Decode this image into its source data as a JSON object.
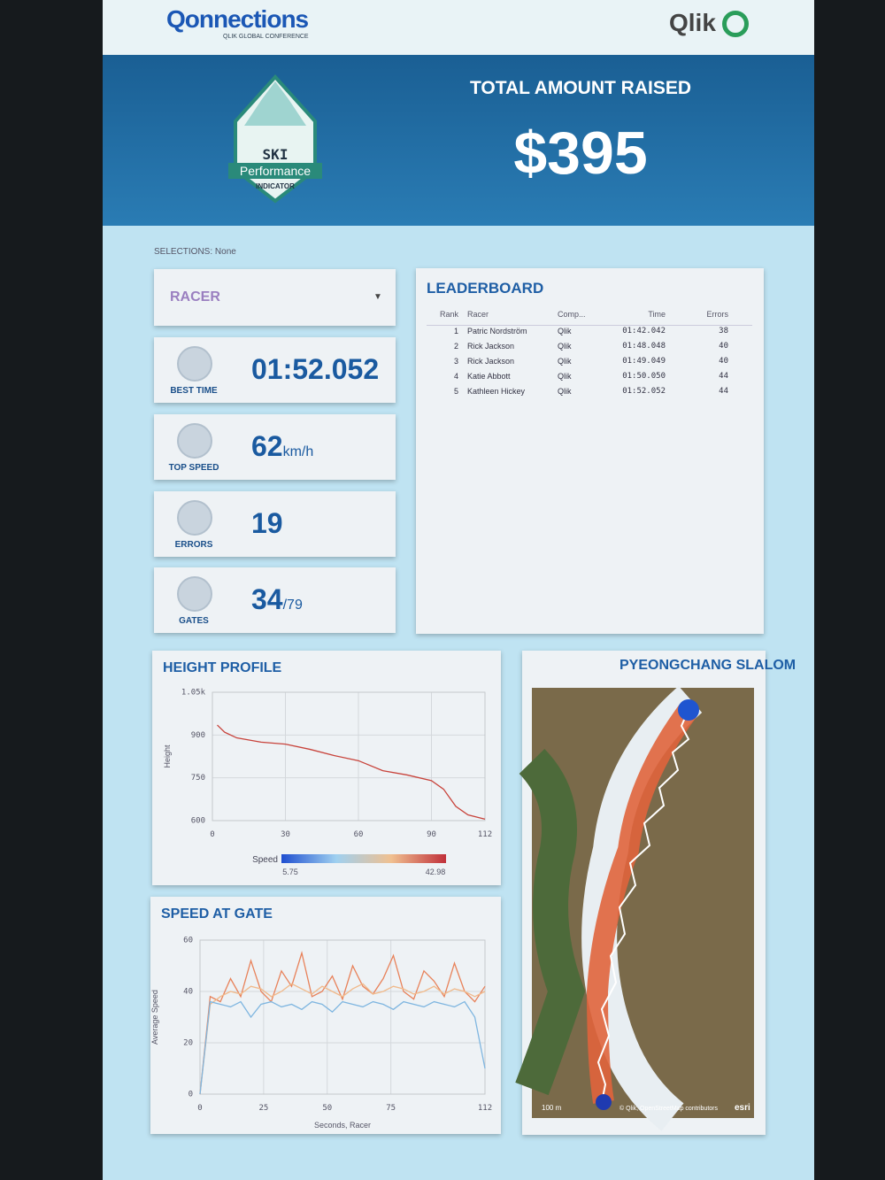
{
  "header": {
    "brand": "Qonnections",
    "brand_sub": "QLIK GLOBAL CONFERENCE",
    "partner": "Qlik"
  },
  "banner": {
    "badge": [
      "SKI",
      "Performance",
      "INDICATOR"
    ],
    "total_label": "TOTAL AMOUNT RAISED",
    "total": "$395"
  },
  "selections": {
    "label": "SELECTIONS:",
    "value": "None"
  },
  "racer_filter": "RACER",
  "kpis": [
    {
      "label": "BEST TIME",
      "value": "01:52.052"
    },
    {
      "label": "TOP SPEED",
      "value": 62,
      "unit": "km/h"
    },
    {
      "label": "ERRORS",
      "value": 19
    },
    {
      "label": "GATES",
      "value": 34,
      "unit": "/79"
    }
  ],
  "leaderboard": {
    "title": "LEADERBOARD",
    "columns": [
      "Rank",
      "Racer",
      "Comp...",
      "Time",
      "Errors"
    ],
    "rows": [
      [
        1,
        "Patric Nordström",
        "Qlik",
        "01:42.042",
        38
      ],
      [
        2,
        "Rick Jackson",
        "Qlik",
        "01:48.048",
        40
      ],
      [
        3,
        "Rick Jackson",
        "Qlik",
        "01:49.049",
        40
      ],
      [
        4,
        "Katie Abbott",
        "Qlik",
        "01:50.050",
        44
      ],
      [
        5,
        "Kathleen Hickey",
        "Qlik",
        "01:52.052",
        44
      ]
    ]
  },
  "chart_data": [
    {
      "type": "line",
      "title": "HEIGHT PROFILE",
      "y_label": "Height",
      "x": [
        2,
        5,
        10,
        20,
        30,
        40,
        50,
        60,
        70,
        80,
        90,
        95,
        100,
        105,
        112
      ],
      "series": [
        {
          "color": "#c8433b",
          "values": [
            935,
            910,
            890,
            875,
            868,
            850,
            828,
            810,
            775,
            760,
            740,
            710,
            650,
            620,
            605
          ]
        }
      ],
      "xlim": [
        0,
        112
      ],
      "xticks": [
        0,
        30,
        60,
        90,
        112
      ],
      "ylim": [
        600,
        1050
      ],
      "yticks": [
        {
          "value": 1050,
          "label": "1.05k"
        },
        900,
        750,
        600
      ],
      "grid": true,
      "color_scale": {
        "label": "Speed",
        "min": 5.75,
        "max": 42.98,
        "colors": [
          "#1f4fd0",
          "#9fd0f0",
          "#f0c090",
          "#c0303a"
        ]
      }
    },
    {
      "type": "line",
      "title": "SPEED AT GATE",
      "y_label": "Average Speed",
      "x_label": "Seconds, Racer",
      "x": [
        0,
        4,
        8,
        12,
        16,
        20,
        24,
        28,
        32,
        36,
        40,
        44,
        48,
        52,
        56,
        60,
        64,
        68,
        72,
        76,
        80,
        84,
        88,
        92,
        96,
        100,
        104,
        108,
        112
      ],
      "series": [
        {
          "color": "#e8825a",
          "values": [
            0,
            38,
            36,
            45,
            38,
            52,
            40,
            36,
            48,
            42,
            55,
            38,
            40,
            46,
            37,
            50,
            42,
            39,
            45,
            54,
            40,
            37,
            48,
            44,
            38,
            51,
            40,
            36,
            42
          ]
        },
        {
          "color": "#f0b98a",
          "values": [
            0,
            35,
            38,
            40,
            39,
            42,
            41,
            38,
            40,
            43,
            41,
            39,
            42,
            40,
            38,
            41,
            43,
            39,
            40,
            42,
            41,
            39,
            40,
            42,
            39,
            41,
            40,
            38,
            40
          ]
        },
        {
          "color": "#7fb6e0",
          "values": [
            0,
            36,
            35,
            34,
            36,
            30,
            35,
            36,
            34,
            35,
            33,
            36,
            35,
            32,
            36,
            35,
            34,
            36,
            35,
            33,
            36,
            35,
            34,
            36,
            35,
            34,
            36,
            30,
            10
          ]
        }
      ],
      "xlim": [
        0,
        112
      ],
      "xticks": [
        0,
        25,
        50,
        75,
        112
      ],
      "ylim": [
        0,
        60
      ],
      "yticks": [
        0,
        20,
        40,
        60
      ],
      "grid": true
    }
  ],
  "map": {
    "title": "PYEONGCHANG SLALOM",
    "scale": "100 m",
    "attribution": "© Qlik, OpenStreetMap contributors",
    "provider": "esri"
  }
}
